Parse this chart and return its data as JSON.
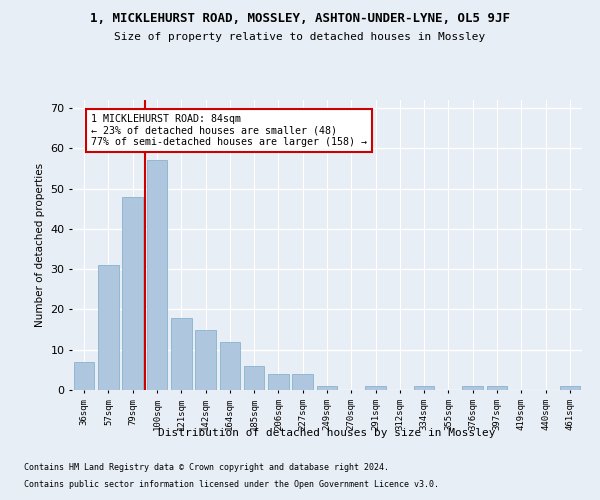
{
  "title": "1, MICKLEHURST ROAD, MOSSLEY, ASHTON-UNDER-LYNE, OL5 9JF",
  "subtitle": "Size of property relative to detached houses in Mossley",
  "xlabel": "Distribution of detached houses by size in Mossley",
  "ylabel": "Number of detached properties",
  "categories": [
    "36sqm",
    "57sqm",
    "79sqm",
    "100sqm",
    "121sqm",
    "142sqm",
    "164sqm",
    "185sqm",
    "206sqm",
    "227sqm",
    "249sqm",
    "270sqm",
    "291sqm",
    "312sqm",
    "334sqm",
    "355sqm",
    "376sqm",
    "397sqm",
    "419sqm",
    "440sqm",
    "461sqm"
  ],
  "values": [
    7,
    31,
    48,
    57,
    18,
    15,
    12,
    6,
    4,
    4,
    1,
    0,
    1,
    0,
    1,
    0,
    1,
    1,
    0,
    0,
    1
  ],
  "bar_color": "#aec6de",
  "bar_edge_color": "#7aaac8",
  "background_color": "#e8eef5",
  "grid_color": "#ffffff",
  "marker_label": "1 MICKLEHURST ROAD: 84sqm",
  "annotation_line1": "← 23% of detached houses are smaller (48)",
  "annotation_line2": "77% of semi-detached houses are larger (158) →",
  "annotation_box_color": "#ffffff",
  "annotation_box_edge": "#cc0000",
  "marker_line_color": "#cc0000",
  "ylim": [
    0,
    72
  ],
  "yticks": [
    0,
    10,
    20,
    30,
    40,
    50,
    60,
    70
  ],
  "footer_line1": "Contains HM Land Registry data © Crown copyright and database right 2024.",
  "footer_line2": "Contains public sector information licensed under the Open Government Licence v3.0."
}
